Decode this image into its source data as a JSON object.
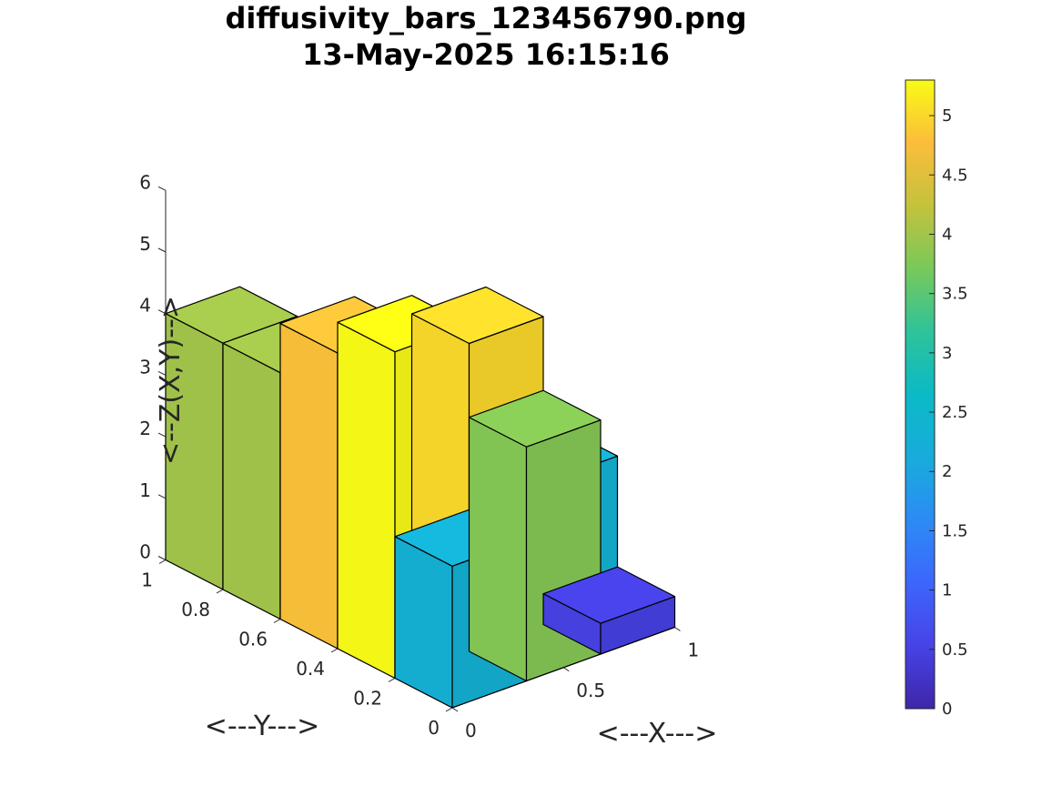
{
  "chart_data": {
    "type": "bar3",
    "title_line1": "diffusivity_bars_123456790.png",
    "title_line2": "13-May-2025 16:15:16",
    "xlabel": "<---X--->",
    "ylabel": "<---Y--->",
    "zlabel": "<--Z(X,Y)-->",
    "x_ticks": [
      "0",
      "0.5",
      "1"
    ],
    "y_ticks": [
      "0",
      "0.2",
      "0.4",
      "0.6",
      "0.8",
      "1"
    ],
    "z_ticks": [
      "0",
      "1",
      "2",
      "3",
      "4",
      "5",
      "6"
    ],
    "zlim": [
      0,
      6
    ],
    "colorbar": {
      "range": [
        0,
        5.3
      ],
      "ticks": [
        "0",
        "0.5",
        "1",
        "1.5",
        "2",
        "2.5",
        "3",
        "3.5",
        "4",
        "4.5",
        "5"
      ]
    },
    "bars": [
      {
        "row": 4,
        "col": 0,
        "value": 4.0
      },
      {
        "row": 3,
        "col": 0,
        "value": 4.0
      },
      {
        "row": 2,
        "col": 0,
        "value": 4.8
      },
      {
        "row": 1,
        "col": 0,
        "value": 5.3
      },
      {
        "row": 0,
        "col": 0,
        "value": 2.3
      },
      {
        "row": 4,
        "col": 1,
        "value": 0.5
      },
      {
        "row": 3,
        "col": 1,
        "value": 0.5
      },
      {
        "row": 2,
        "col": 1,
        "value": 2.7
      },
      {
        "row": 1,
        "col": 1,
        "value": 5.0
      },
      {
        "row": 0,
        "col": 1,
        "value": 3.8
      },
      {
        "row": 4,
        "col": 2,
        "value": 0.5
      },
      {
        "row": 3,
        "col": 2,
        "value": 0.5
      },
      {
        "row": 2,
        "col": 2,
        "value": 0.5
      },
      {
        "row": 1,
        "col": 2,
        "value": 2.3
      },
      {
        "row": 0,
        "col": 2,
        "value": 0.5
      }
    ]
  },
  "colors": {
    "face": "#000000",
    "text": "#262626"
  }
}
